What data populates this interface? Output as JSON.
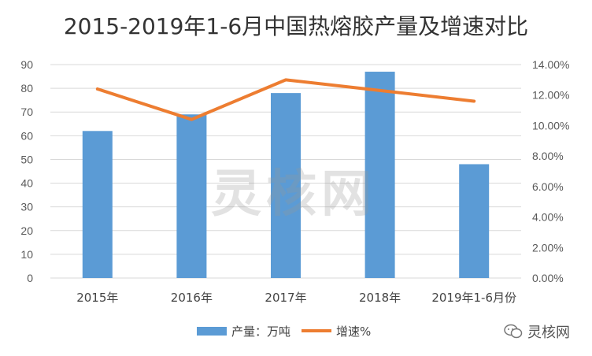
{
  "chart_data": {
    "type": "bar",
    "title": "2015-2019年1-6月中国热熔胶产量及增速对比",
    "categories": [
      "2015年",
      "2016年",
      "2017年",
      "2018年",
      "2019年1-6月份"
    ],
    "series": [
      {
        "name": "产量：万吨",
        "type": "bar",
        "axis": "left",
        "values": [
          62,
          69,
          78,
          87,
          48
        ]
      },
      {
        "name": "增速%",
        "type": "line",
        "axis": "right",
        "values": [
          12.4,
          10.4,
          13.0,
          12.3,
          11.6
        ]
      }
    ],
    "ylim": [
      0,
      90
    ],
    "yticks": [
      "0",
      "10",
      "20",
      "30",
      "40",
      "50",
      "60",
      "70",
      "80",
      "90"
    ],
    "y2lim": [
      0,
      14
    ],
    "y2ticks": [
      "0.00%",
      "2.00%",
      "4.00%",
      "6.00%",
      "8.00%",
      "10.00%",
      "12.00%",
      "14.00%"
    ],
    "grid": true,
    "legend_position": "bottom",
    "colors": {
      "bar": "#5B9BD5",
      "line": "#ED7D31",
      "grid": "#D9D9D9"
    }
  },
  "watermark": "灵核网",
  "brand": {
    "label": "灵核网",
    "icon": "wechat-icon"
  }
}
